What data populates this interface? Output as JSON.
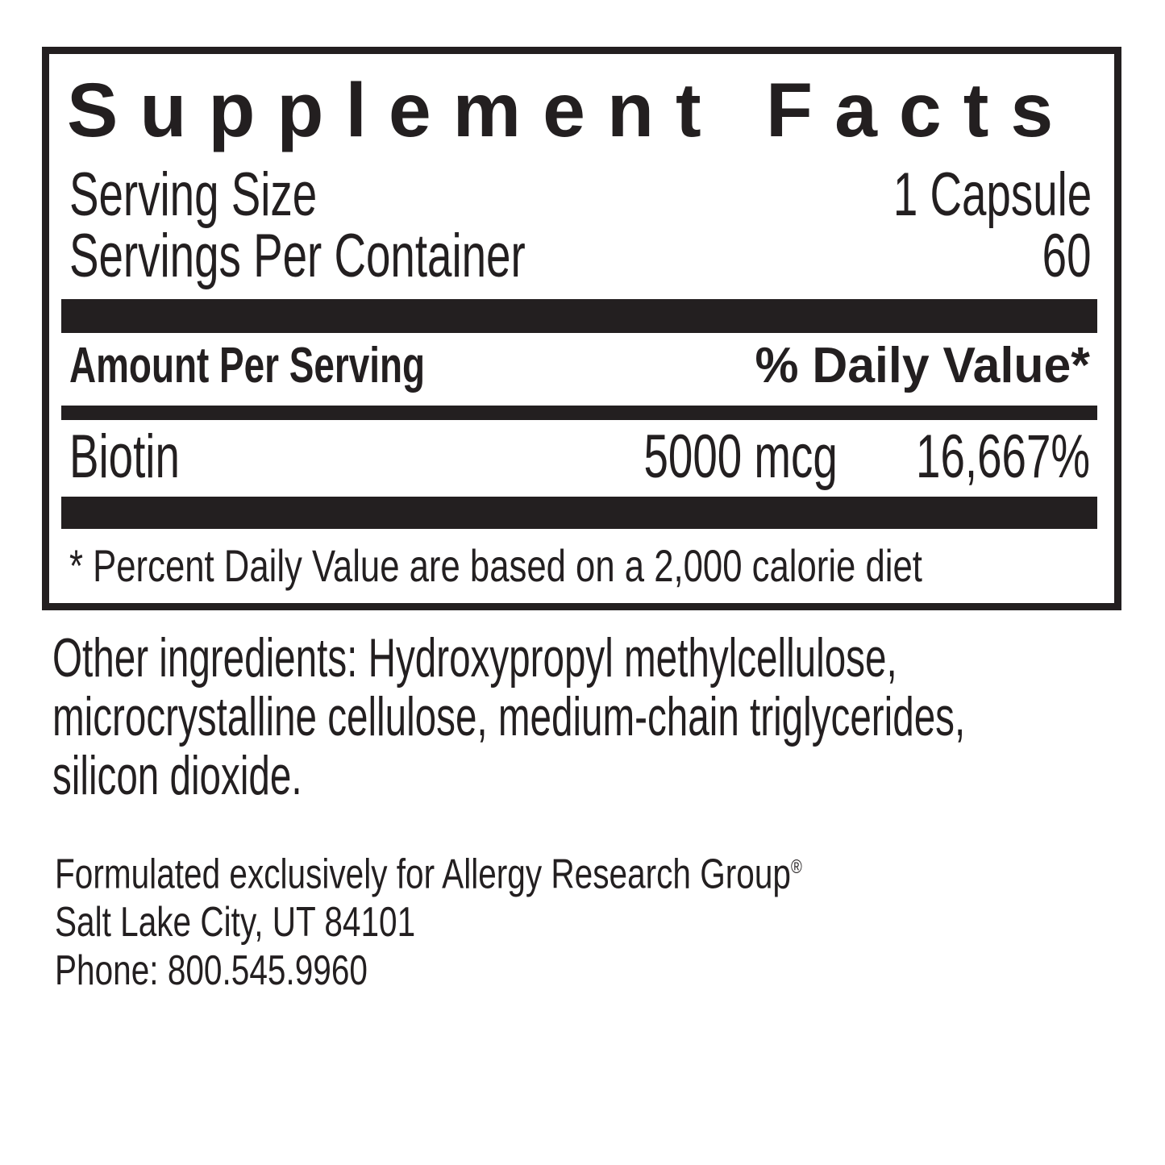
{
  "colors": {
    "ink": "#231f20",
    "background": "#ffffff"
  },
  "panel": {
    "title": "Supplement Facts",
    "serving_size": {
      "label": "Serving Size",
      "value": "1 Capsule"
    },
    "servings_per_container": {
      "label": "Servings Per Container",
      "value": "60"
    },
    "columns": {
      "amount_header": "Amount Per Serving",
      "daily_value_header": "% Daily Value*"
    },
    "rows": [
      {
        "name": "Biotin",
        "amount": "5000 mcg",
        "daily_value": "16,667%"
      }
    ],
    "footnote": "* Percent Daily Value are based on a 2,000 calorie diet"
  },
  "other_ingredients": {
    "lines": [
      "Other ingredients: Hydroxypropyl methylcellulose,",
      "microcrystalline cellulose, medium-chain triglycerides,",
      "silicon dioxide."
    ]
  },
  "manufacturer": {
    "formulated_for": "Formulated exclusively for Allergy Research Group",
    "registered_mark": "®",
    "address": "Salt Lake City, UT 84101",
    "phone": "Phone: 800.545.9960"
  }
}
